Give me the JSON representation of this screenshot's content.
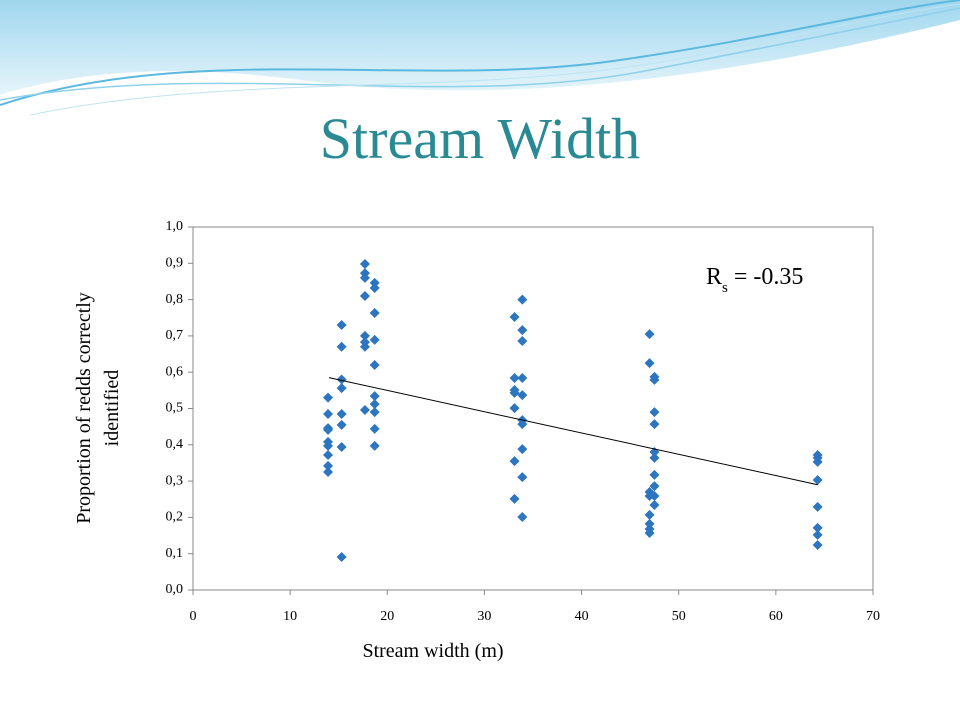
{
  "slide_title": "Stream Width",
  "chart_data": {
    "type": "scatter",
    "xlabel": "Stream width (m)",
    "ylabel": [
      "Proportion of redds correctly",
      "identified"
    ],
    "annotation": {
      "text": "R",
      "subscript": "s",
      "rest": " = -0.35"
    },
    "color": "#2e75c0",
    "xlim": [
      0,
      70
    ],
    "xticks": [
      0,
      10,
      20,
      30,
      40,
      50,
      60,
      70
    ],
    "ylim": [
      0,
      1
    ],
    "yticks": [
      {
        "value": 0,
        "label": "0,0"
      },
      {
        "value": 0.1,
        "label": "0,1"
      },
      {
        "value": 0.2,
        "label": "0,2"
      },
      {
        "value": 0.3,
        "label": "0,3"
      },
      {
        "value": 0.4,
        "label": "0,4"
      },
      {
        "value": 0.5,
        "label": "0,5"
      },
      {
        "value": 0.6,
        "label": "0,6"
      },
      {
        "value": 0.7,
        "label": "0,7"
      },
      {
        "value": 0.8,
        "label": "0,8"
      },
      {
        "value": 0.9,
        "label": "0,9"
      },
      {
        "value": 1,
        "label": "1,0"
      }
    ],
    "x": [
      13.9,
      13.9,
      13.9,
      13.9,
      13.9,
      13.9,
      13.9,
      13.9,
      13.9,
      15.3,
      15.3,
      15.3,
      15.3,
      15.3,
      15.3,
      15.3,
      15.3,
      17.7,
      17.7,
      17.7,
      17.7,
      17.7,
      17.7,
      17.7,
      17.7,
      18.7,
      18.7,
      18.7,
      18.7,
      18.7,
      18.7,
      18.7,
      18.7,
      18.7,
      18.7,
      33.1,
      33.1,
      33.1,
      33.1,
      33.1,
      33.1,
      33.1,
      33.9,
      33.9,
      33.9,
      33.9,
      33.9,
      33.9,
      33.9,
      33.9,
      33.9,
      33.9,
      47.0,
      47.0,
      47.0,
      47.0,
      47.0,
      47.0,
      47.0,
      47.0,
      47.5,
      47.5,
      47.5,
      47.5,
      47.5,
      47.5,
      47.5,
      47.5,
      47.5,
      47.5,
      64.3,
      64.3,
      64.3,
      64.3,
      64.3,
      64.3,
      64.3,
      64.3
    ],
    "values": [
      0.53,
      0.485,
      0.446,
      0.441,
      0.408,
      0.397,
      0.372,
      0.342,
      0.325,
      0.73,
      0.67,
      0.58,
      0.556,
      0.485,
      0.455,
      0.394,
      0.091,
      0.898,
      0.873,
      0.86,
      0.81,
      0.7,
      0.683,
      0.67,
      0.496,
      0.846,
      0.832,
      0.763,
      0.689,
      0.62,
      0.534,
      0.512,
      0.49,
      0.444,
      0.397,
      0.752,
      0.584,
      0.551,
      0.543,
      0.501,
      0.355,
      0.251,
      0.8,
      0.716,
      0.686,
      0.584,
      0.537,
      0.468,
      0.457,
      0.388,
      0.311,
      0.201,
      0.705,
      0.625,
      0.27,
      0.259,
      0.207,
      0.182,
      0.168,
      0.157,
      0.587,
      0.579,
      0.49,
      0.457,
      0.38,
      0.364,
      0.317,
      0.286,
      0.259,
      0.234,
      0.372,
      0.364,
      0.353,
      0.303,
      0.229,
      0.171,
      0.152,
      0.124
    ],
    "trendline": {
      "x": [
        14,
        64.3
      ],
      "y": [
        0.585,
        0.29
      ]
    }
  }
}
